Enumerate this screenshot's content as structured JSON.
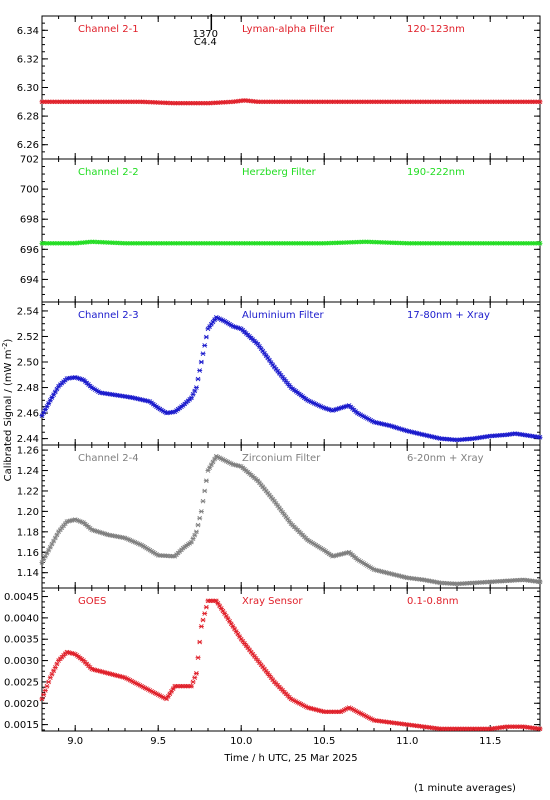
{
  "chart_data": {
    "type": "scatter",
    "xlabel": "Time / h UTC, 25 Mar 2025",
    "ylabel": "Calibrated Signal / (mW m",
    "ylabel_sup": "-2",
    "ylabel_close": ")",
    "note": "(1 minute averages)",
    "xlim": [
      8.8,
      11.8
    ],
    "xticks": [
      9.0,
      9.5,
      10.0,
      10.5,
      11.0,
      11.5
    ],
    "xtick_labels": [
      "9.0",
      "9.5",
      "10.0",
      "10.5",
      "11.0",
      "11.5"
    ],
    "marker_annotation": {
      "x": 9.82,
      "lines": [
        "1370",
        "C4.4"
      ]
    },
    "panels": [
      {
        "channel": "Channel 2-1",
        "filter": "Lyman-alpha Filter",
        "band": "120-123nm",
        "color": "#e0202a",
        "ylim": [
          6.25,
          6.35
        ],
        "yticks": [
          6.26,
          6.28,
          6.3,
          6.32,
          6.34
        ],
        "ytick_labels": [
          "6.26",
          "6.28",
          "6.30",
          "6.32",
          "6.34"
        ],
        "points": [
          [
            8.8,
            6.29
          ],
          [
            9.0,
            6.29
          ],
          [
            9.2,
            6.29
          ],
          [
            9.4,
            6.29
          ],
          [
            9.6,
            6.289
          ],
          [
            9.8,
            6.289
          ],
          [
            9.95,
            6.29
          ],
          [
            10.02,
            6.291
          ],
          [
            10.1,
            6.29
          ],
          [
            10.3,
            6.29
          ],
          [
            10.6,
            6.29
          ],
          [
            11.0,
            6.29
          ],
          [
            11.4,
            6.29
          ],
          [
            11.8,
            6.29
          ]
        ]
      },
      {
        "channel": "Channel 2-2",
        "filter": "Herzberg Filter",
        "band": "190-222nm",
        "color": "#22dd22",
        "ylim": [
          692.5,
          702.0
        ],
        "yticks": [
          694,
          696,
          698,
          700,
          702
        ],
        "ytick_labels": [
          "694",
          "696",
          "698",
          "700",
          "702"
        ],
        "points": [
          [
            8.8,
            696.4
          ],
          [
            9.0,
            696.4
          ],
          [
            9.1,
            696.5
          ],
          [
            9.3,
            696.4
          ],
          [
            9.6,
            696.4
          ],
          [
            9.9,
            696.4
          ],
          [
            10.2,
            696.4
          ],
          [
            10.5,
            696.4
          ],
          [
            10.75,
            696.5
          ],
          [
            11.0,
            696.4
          ],
          [
            11.4,
            696.4
          ],
          [
            11.8,
            696.4
          ]
        ]
      },
      {
        "channel": "Channel 2-3",
        "filter": "Aluminium Filter",
        "band": "17-80nm + Xray",
        "color": "#1a1acc",
        "ylim": [
          2.435,
          2.547
        ],
        "yticks": [
          2.44,
          2.46,
          2.48,
          2.5,
          2.52,
          2.54
        ],
        "ytick_labels": [
          "2.44",
          "2.46",
          "2.48",
          "2.50",
          "2.52",
          "2.54"
        ],
        "points": [
          [
            8.8,
            2.458
          ],
          [
            8.85,
            2.47
          ],
          [
            8.9,
            2.481
          ],
          [
            8.95,
            2.487
          ],
          [
            9.0,
            2.488
          ],
          [
            9.05,
            2.486
          ],
          [
            9.1,
            2.48
          ],
          [
            9.15,
            2.476
          ],
          [
            9.25,
            2.474
          ],
          [
            9.35,
            2.472
          ],
          [
            9.45,
            2.469
          ],
          [
            9.5,
            2.464
          ],
          [
            9.55,
            2.46
          ],
          [
            9.6,
            2.461
          ],
          [
            9.65,
            2.466
          ],
          [
            9.7,
            2.472
          ],
          [
            9.73,
            2.48
          ],
          [
            9.76,
            2.5
          ],
          [
            9.8,
            2.526
          ],
          [
            9.85,
            2.535
          ],
          [
            9.9,
            2.532
          ],
          [
            9.95,
            2.528
          ],
          [
            10.0,
            2.526
          ],
          [
            10.1,
            2.514
          ],
          [
            10.2,
            2.496
          ],
          [
            10.3,
            2.48
          ],
          [
            10.4,
            2.47
          ],
          [
            10.5,
            2.464
          ],
          [
            10.55,
            2.462
          ],
          [
            10.6,
            2.464
          ],
          [
            10.65,
            2.466
          ],
          [
            10.7,
            2.46
          ],
          [
            10.8,
            2.453
          ],
          [
            10.9,
            2.45
          ],
          [
            11.0,
            2.446
          ],
          [
            11.1,
            2.443
          ],
          [
            11.2,
            2.44
          ],
          [
            11.3,
            2.439
          ],
          [
            11.4,
            2.44
          ],
          [
            11.5,
            2.442
          ],
          [
            11.6,
            2.443
          ],
          [
            11.65,
            2.444
          ],
          [
            11.7,
            2.443
          ],
          [
            11.8,
            2.441
          ]
        ]
      },
      {
        "channel": "Channel 2-4",
        "filter": "Zirconium Filter",
        "band": "6-20nm + Xray",
        "color": "#7f7f7f",
        "ylim": [
          1.125,
          1.265
        ],
        "yticks": [
          1.14,
          1.16,
          1.18,
          1.2,
          1.22,
          1.24,
          1.26
        ],
        "ytick_labels": [
          "1.14",
          "1.16",
          "1.18",
          "1.20",
          "1.22",
          "1.24",
          "1.26"
        ],
        "points": [
          [
            8.8,
            1.15
          ],
          [
            8.85,
            1.165
          ],
          [
            8.9,
            1.18
          ],
          [
            8.95,
            1.19
          ],
          [
            9.0,
            1.192
          ],
          [
            9.05,
            1.189
          ],
          [
            9.1,
            1.182
          ],
          [
            9.2,
            1.177
          ],
          [
            9.3,
            1.174
          ],
          [
            9.4,
            1.167
          ],
          [
            9.5,
            1.157
          ],
          [
            9.6,
            1.156
          ],
          [
            9.65,
            1.164
          ],
          [
            9.7,
            1.17
          ],
          [
            9.73,
            1.18
          ],
          [
            9.76,
            1.2
          ],
          [
            9.8,
            1.24
          ],
          [
            9.85,
            1.254
          ],
          [
            9.9,
            1.25
          ],
          [
            9.95,
            1.246
          ],
          [
            10.0,
            1.244
          ],
          [
            10.1,
            1.23
          ],
          [
            10.2,
            1.21
          ],
          [
            10.3,
            1.188
          ],
          [
            10.4,
            1.172
          ],
          [
            10.5,
            1.162
          ],
          [
            10.55,
            1.156
          ],
          [
            10.6,
            1.158
          ],
          [
            10.65,
            1.16
          ],
          [
            10.7,
            1.153
          ],
          [
            10.8,
            1.143
          ],
          [
            10.9,
            1.139
          ],
          [
            11.0,
            1.135
          ],
          [
            11.1,
            1.133
          ],
          [
            11.2,
            1.13
          ],
          [
            11.3,
            1.129
          ],
          [
            11.4,
            1.13
          ],
          [
            11.5,
            1.131
          ],
          [
            11.6,
            1.132
          ],
          [
            11.7,
            1.133
          ],
          [
            11.8,
            1.131
          ]
        ]
      },
      {
        "channel": "GOES",
        "filter": "Xray Sensor",
        "band": "0.1-0.8nm",
        "color": "#e0202a",
        "ylim": [
          0.00135,
          0.0047
        ],
        "yticks": [
          0.0015,
          0.002,
          0.0025,
          0.003,
          0.0035,
          0.004,
          0.0045
        ],
        "ytick_labels": [
          "0.0015",
          "0.0020",
          "0.0025",
          "0.0030",
          "0.0035",
          "0.0040",
          "0.0045"
        ],
        "points": [
          [
            8.8,
            0.0021
          ],
          [
            8.85,
            0.0026
          ],
          [
            8.9,
            0.003
          ],
          [
            8.95,
            0.0032
          ],
          [
            9.0,
            0.00315
          ],
          [
            9.05,
            0.003
          ],
          [
            9.1,
            0.0028
          ],
          [
            9.2,
            0.0027
          ],
          [
            9.3,
            0.0026
          ],
          [
            9.4,
            0.0024
          ],
          [
            9.5,
            0.0022
          ],
          [
            9.55,
            0.0021
          ],
          [
            9.6,
            0.0024
          ],
          [
            9.65,
            0.0024
          ],
          [
            9.7,
            0.0024
          ],
          [
            9.73,
            0.0027
          ],
          [
            9.76,
            0.0038
          ],
          [
            9.8,
            0.0044
          ],
          [
            9.85,
            0.0044
          ],
          [
            9.9,
            0.0041
          ],
          [
            10.0,
            0.0035
          ],
          [
            10.1,
            0.003
          ],
          [
            10.2,
            0.0025
          ],
          [
            10.3,
            0.0021
          ],
          [
            10.4,
            0.0019
          ],
          [
            10.5,
            0.0018
          ],
          [
            10.6,
            0.0018
          ],
          [
            10.65,
            0.0019
          ],
          [
            10.7,
            0.0018
          ],
          [
            10.8,
            0.0016
          ],
          [
            10.9,
            0.00155
          ],
          [
            11.0,
            0.0015
          ],
          [
            11.2,
            0.0014
          ],
          [
            11.3,
            0.0014
          ],
          [
            11.4,
            0.0014
          ],
          [
            11.5,
            0.0014
          ],
          [
            11.6,
            0.00145
          ],
          [
            11.7,
            0.00145
          ],
          [
            11.8,
            0.0014
          ]
        ]
      }
    ]
  }
}
